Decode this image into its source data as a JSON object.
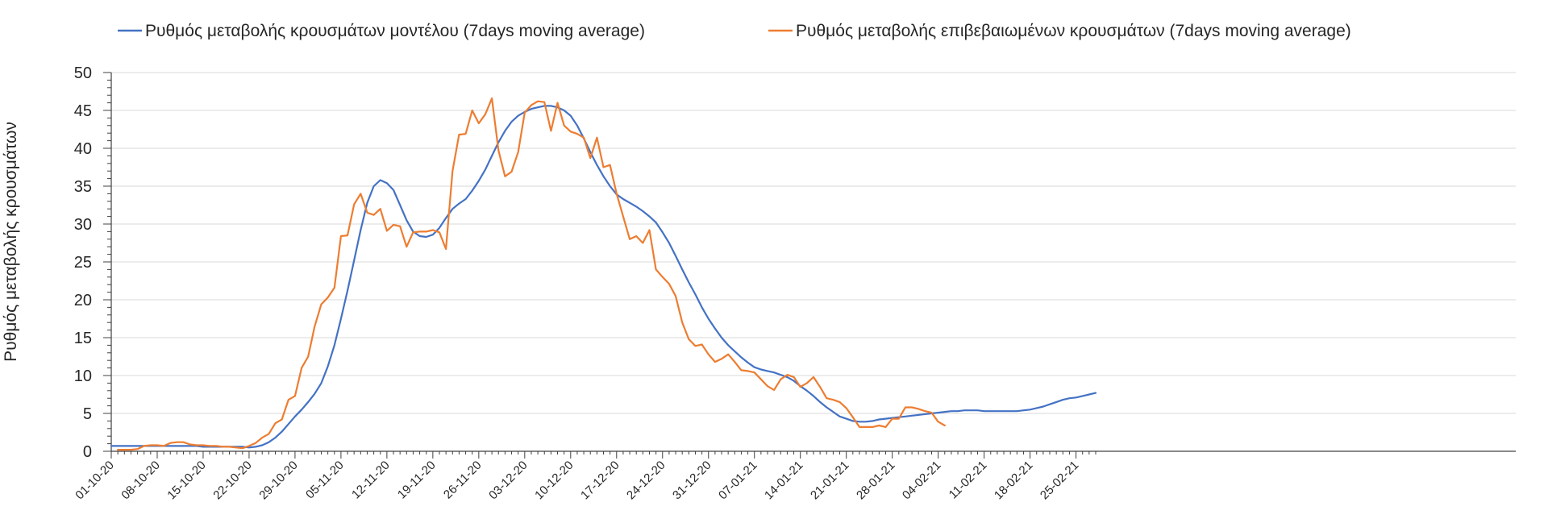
{
  "chart_data": {
    "type": "line",
    "title": "",
    "xlabel": "",
    "ylabel": "Ρυθμός μεταβολής κρουσμάτων",
    "ylim": [
      0,
      50
    ],
    "yticks": [
      0,
      5,
      10,
      15,
      20,
      25,
      30,
      35,
      40,
      45,
      50
    ],
    "grid": true,
    "legend_position": "top",
    "start_date": "01-10-20",
    "num_days": 150,
    "x_tick_labels": [
      "01-10-20",
      "08-10-20",
      "15-10-20",
      "22-10-20",
      "29-10-20",
      "05-11-20",
      "12-11-20",
      "19-11-20",
      "26-11-20",
      "03-12-20",
      "10-12-20",
      "17-12-20",
      "24-12-20",
      "31-12-20",
      "07-01-21",
      "14-01-21",
      "21-01-21",
      "28-01-21",
      "04-02-21",
      "11-02-21",
      "18-02-21",
      "25-02-21"
    ],
    "series": [
      {
        "name": "Ρυθμός μεταβολής κρουσμάτων μοντέλου (7days moving average)",
        "color": "#4472c4",
        "day_start": 0,
        "values": [
          0.7,
          0.7,
          0.7,
          0.7,
          0.7,
          0.7,
          0.7,
          0.7,
          0.7,
          0.7,
          0.7,
          0.7,
          0.7,
          0.7,
          0.6,
          0.6,
          0.6,
          0.6,
          0.6,
          0.6,
          0.6,
          0.5,
          0.6,
          0.8,
          1.2,
          1.8,
          2.6,
          3.6,
          4.6,
          5.5,
          6.5,
          7.6,
          9.0,
          11.2,
          14.0,
          17.5,
          21.2,
          25.2,
          29.2,
          32.8,
          35.0,
          35.8,
          35.4,
          34.5,
          32.5,
          30.5,
          29.0,
          28.4,
          28.3,
          28.6,
          29.5,
          30.8,
          32.0,
          32.7,
          33.3,
          34.4,
          35.7,
          37.2,
          39.0,
          40.8,
          42.3,
          43.5,
          44.3,
          44.8,
          45.2,
          45.4,
          45.6,
          45.6,
          45.4,
          45.0,
          44.3,
          43.0,
          41.3,
          39.5,
          37.8,
          36.3,
          35.0,
          33.9,
          33.3,
          32.8,
          32.3,
          31.7,
          31.0,
          30.2,
          28.9,
          27.5,
          25.8,
          24.0,
          22.3,
          20.7,
          19.0,
          17.5,
          16.2,
          15.0,
          14.0,
          13.2,
          12.4,
          11.7,
          11.1,
          10.8,
          10.6,
          10.4,
          10.1,
          9.8,
          9.3,
          8.6,
          8.0,
          7.3,
          6.5,
          5.8,
          5.2,
          4.6,
          4.3,
          4.0,
          3.9,
          3.9,
          4.0,
          4.2,
          4.3,
          4.4,
          4.5,
          4.6,
          4.7,
          4.8,
          4.9,
          5.0,
          5.1,
          5.2,
          5.3,
          5.3,
          5.4,
          5.4,
          5.4,
          5.3,
          5.3,
          5.3,
          5.3,
          5.3,
          5.3,
          5.4,
          5.5,
          5.7,
          5.9,
          6.2,
          6.5,
          6.8,
          7.0,
          7.1,
          7.3,
          7.5,
          7.7
        ]
      },
      {
        "name": "Ρυθμός μεταβολής επιβεβαιωμένων κρουσμάτων (7days moving average)",
        "color": "#ed7d31",
        "day_start": 1,
        "values": [
          0.2,
          0.2,
          0.2,
          0.3,
          0.7,
          0.8,
          0.8,
          0.7,
          1.1,
          1.2,
          1.2,
          0.9,
          0.8,
          0.8,
          0.7,
          0.7,
          0.6,
          0.6,
          0.5,
          0.4,
          0.7,
          1.1,
          1.8,
          2.3,
          3.7,
          4.2,
          6.8,
          7.3,
          11.0,
          12.5,
          16.5,
          19.4,
          20.3,
          21.6,
          28.4,
          28.5,
          32.6,
          34.0,
          31.5,
          31.2,
          32.0,
          29.1,
          29.9,
          29.7,
          27.0,
          28.9,
          29.0,
          29.0,
          29.2,
          28.9,
          26.7,
          37.0,
          41.8,
          41.9,
          45.0,
          43.3,
          44.5,
          46.6,
          39.7,
          36.3,
          36.9,
          39.5,
          44.7,
          45.7,
          46.2,
          46.1,
          42.3,
          46.0,
          43.0,
          42.2,
          41.9,
          41.4,
          38.7,
          41.4,
          37.5,
          37.8,
          34.0,
          31.0,
          28.0,
          28.4,
          27.5,
          29.2,
          24.0,
          23.0,
          22.1,
          20.5,
          17.0,
          14.8,
          13.9,
          14.1,
          12.8,
          11.8,
          12.2,
          12.8,
          11.8,
          10.7,
          10.6,
          10.4,
          9.5,
          8.6,
          8.1,
          9.5,
          10.1,
          9.8,
          8.5,
          9.0,
          9.8,
          8.5,
          7.0,
          6.8,
          6.5,
          5.7,
          4.5,
          3.2,
          3.2,
          3.2,
          3.4,
          3.2,
          4.3,
          4.3,
          5.8,
          5.8,
          5.6,
          5.3,
          5.1,
          3.9,
          3.4
        ]
      }
    ]
  }
}
